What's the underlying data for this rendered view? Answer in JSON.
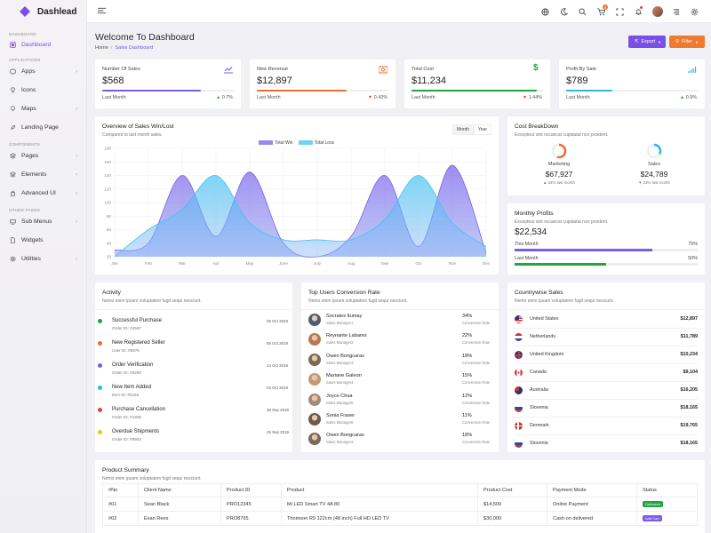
{
  "app": {
    "name": "Dashlead"
  },
  "sidebar": {
    "groups": [
      "DASHBOARD",
      "APPLICATIONS",
      "COMPONENTS",
      "OTHER PAGES"
    ],
    "items": [
      {
        "label": "Dashboard",
        "icon": "dashboard-icon"
      },
      {
        "label": "Apps",
        "icon": "box-icon"
      },
      {
        "label": "Icons",
        "icon": "gem-icon"
      },
      {
        "label": "Maps",
        "icon": "map-icon"
      },
      {
        "label": "Landing Page",
        "icon": "rocket-icon"
      },
      {
        "label": "Pages",
        "icon": "layers-icon"
      },
      {
        "label": "Elements",
        "icon": "layers-icon"
      },
      {
        "label": "Advanced UI",
        "icon": "lock-icon"
      },
      {
        "label": "Sub Menus",
        "icon": "monitor-icon"
      },
      {
        "label": "Widgets",
        "icon": "file-icon"
      },
      {
        "label": "Utilities",
        "icon": "gear-icon"
      }
    ]
  },
  "topbar": {
    "cart_badge": "5"
  },
  "page": {
    "title": "Welcome To Dashboard",
    "crumb_home": "Home",
    "crumb_current": "Sales Dashboard"
  },
  "buttons": {
    "export": "Export",
    "filter": "Filter"
  },
  "kpis": [
    {
      "label": "Number Of Sales",
      "value": "$568",
      "sub": "Last Month",
      "pct": "0.7%",
      "trend": "up",
      "color": "#7a5ce8",
      "fill": 0.75
    },
    {
      "label": "New Revenue",
      "value": "$12,897",
      "sub": "Last Month",
      "pct": "0.43%",
      "trend": "down",
      "color": "#ef6c2e",
      "fill": 0.68
    },
    {
      "label": "Total Cost",
      "value": "$11,234",
      "sub": "Last Month",
      "pct": "1.44%",
      "trend": "down",
      "color": "#22a443",
      "fill": 0.95
    },
    {
      "label": "Profit By Sale",
      "value": "$789",
      "sub": "Last Month",
      "pct": "0.9%",
      "trend": "up",
      "color": "#2bb8e8",
      "fill": 0.35
    }
  ],
  "sales_chart": {
    "title": "Overview of Sales Win/Lost",
    "subtitle": "Compared to last month sales.",
    "tabs": [
      "Month",
      "Year"
    ],
    "legend": [
      "Total Win",
      "Total Loss"
    ]
  },
  "chart_data": {
    "type": "area",
    "categories": [
      "Jan",
      "Feb",
      "Mar",
      "Apr",
      "May",
      "June",
      "July",
      "Aug",
      "Sep",
      "Oct",
      "Nov",
      "Dec"
    ],
    "series": [
      {
        "name": "Total Win",
        "values": [
          30,
          40,
          140,
          50,
          145,
          40,
          20,
          50,
          140,
          35,
          155,
          25
        ],
        "color": "#7b61e8"
      },
      {
        "name": "Total Loss",
        "values": [
          20,
          60,
          90,
          140,
          70,
          45,
          45,
          45,
          75,
          140,
          70,
          35
        ],
        "color": "#3fc2f0"
      }
    ],
    "y_ticks": [
      20,
      40,
      60,
      80,
      100,
      120,
      140,
      160,
      180
    ],
    "ylim": [
      20,
      180
    ],
    "grid": true,
    "legend_position": "top"
  },
  "cost_breakdown": {
    "title": "Cost BreakDown",
    "subtitle": "Excepteur sint occaecat cupidatat non proident.",
    "items": [
      {
        "label": "Marketing",
        "value": "$67,927",
        "note": "54% last month",
        "trend": "up",
        "color": "#ef6c2e",
        "fill": 0.54
      },
      {
        "label": "Sales",
        "value": "$24,789",
        "note": "33% last month",
        "trend": "down",
        "color": "#2bb8e8",
        "fill": 0.33
      }
    ]
  },
  "monthly_profits": {
    "title": "Monthly Profits",
    "subtitle": "Excepteur sint occaecat cupidatat non proident.",
    "value": "$22,534",
    "rows": [
      {
        "label": "This Month",
        "pct": "75%",
        "fill": 0.75,
        "color": "#7a5ce8"
      },
      {
        "label": "Last Month",
        "pct": "50%",
        "fill": 0.5,
        "color": "#22a443"
      }
    ]
  },
  "activity": {
    "title": "Activity",
    "subtitle": "Nemo enim ipsam voluptatem fugit sequi nesciunt.",
    "items": [
      {
        "title": "Successful Purchase",
        "sub": "Order ID: #4567",
        "date": "25 Oct 2019",
        "color": "#22a443"
      },
      {
        "title": "New Registered Seller",
        "sub": "User ID: #8976",
        "date": "05 Oct 2019",
        "color": "#ef6c2e"
      },
      {
        "title": "Order Verification",
        "sub": "Order ID: #6290",
        "date": "14 Oct 2019",
        "color": "#7a5ce8"
      },
      {
        "title": "New Item Added",
        "sub": "Item ID: #0235",
        "date": "02 Oct 2019",
        "color": "#2bb8e8"
      },
      {
        "title": "Purchase Cancellation",
        "sub": "Order ID: #1905",
        "date": "28 Sep 2019",
        "color": "#e83f3f"
      },
      {
        "title": "Overdue Shipments",
        "sub": "Order ID: #8902",
        "date": "25 Sep 2019",
        "color": "#f3c21c"
      }
    ]
  },
  "top_users": {
    "title": "Top Users Conversion Rate",
    "subtitle": "Nemo enim ipsam voluptatem fugit sequi nesciunt.",
    "rate_label": "Conversion Rate",
    "items": [
      {
        "name": "Socrates Itumay",
        "role": "Sales Manager1",
        "pct": "34%"
      },
      {
        "name": "Reynante Labares",
        "role": "Sales Manager2",
        "pct": "22%"
      },
      {
        "name": "Owen Bongcaras",
        "role": "Sales Manager3",
        "pct": "18%"
      },
      {
        "name": "Mariane Galeon",
        "role": "Sales Manager4",
        "pct": "15%"
      },
      {
        "name": "Joyce Chua",
        "role": "Sales Manager5",
        "pct": "12%"
      },
      {
        "name": "Sonia Fraser",
        "role": "Sales Manager6",
        "pct": "11%"
      },
      {
        "name": "Owen Bongcaras",
        "role": "Sales Manager3",
        "pct": "18%"
      }
    ]
  },
  "countries": {
    "title": "Countrywise Sales",
    "subtitle": "Nemo enim ipsam voluptatem fugit sequi nesciunt.",
    "items": [
      {
        "name": "United States",
        "value": "$12,897",
        "flag": "us-flag-icon"
      },
      {
        "name": "Netherlands",
        "value": "$11,789",
        "flag": "nl-flag-icon"
      },
      {
        "name": "United Kingdom",
        "value": "$10,234",
        "flag": "uk-flag-icon"
      },
      {
        "name": "Canada",
        "value": "$9,104",
        "flag": "ca-flag-icon"
      },
      {
        "name": "Australia",
        "value": "$16,205",
        "flag": "au-flag-icon"
      },
      {
        "name": "Slovenia",
        "value": "$18,165",
        "flag": "si-flag-icon"
      },
      {
        "name": "Denmark",
        "value": "$19,765",
        "flag": "dk-flag-icon"
      },
      {
        "name": "Slovenia",
        "value": "$18,165",
        "flag": "si-flag-icon"
      }
    ]
  },
  "product_summary": {
    "title": "Product Summary",
    "subtitle": "Nemo enim ipsam voluptatem fugit sequi nesciunt.",
    "columns": [
      "#No",
      "Client Name",
      "Product ID",
      "Product",
      "Product Cost",
      "Payment Mode",
      "Status"
    ],
    "rows": [
      [
        "#01",
        "Sean Black",
        "PRO12345",
        "Mi LED Smart TV 4A 80",
        "$14,500",
        "Online Payment",
        "Delivered"
      ],
      [
        "#02",
        "Evan Rees",
        "PRO8765",
        "Thomson R9 122cm (48 inch) Full HD LED TV",
        "$30,000",
        "Cash on delivered",
        "Add Cart"
      ]
    ],
    "status_colors": [
      "#22a443",
      "#7a5ce8"
    ]
  }
}
